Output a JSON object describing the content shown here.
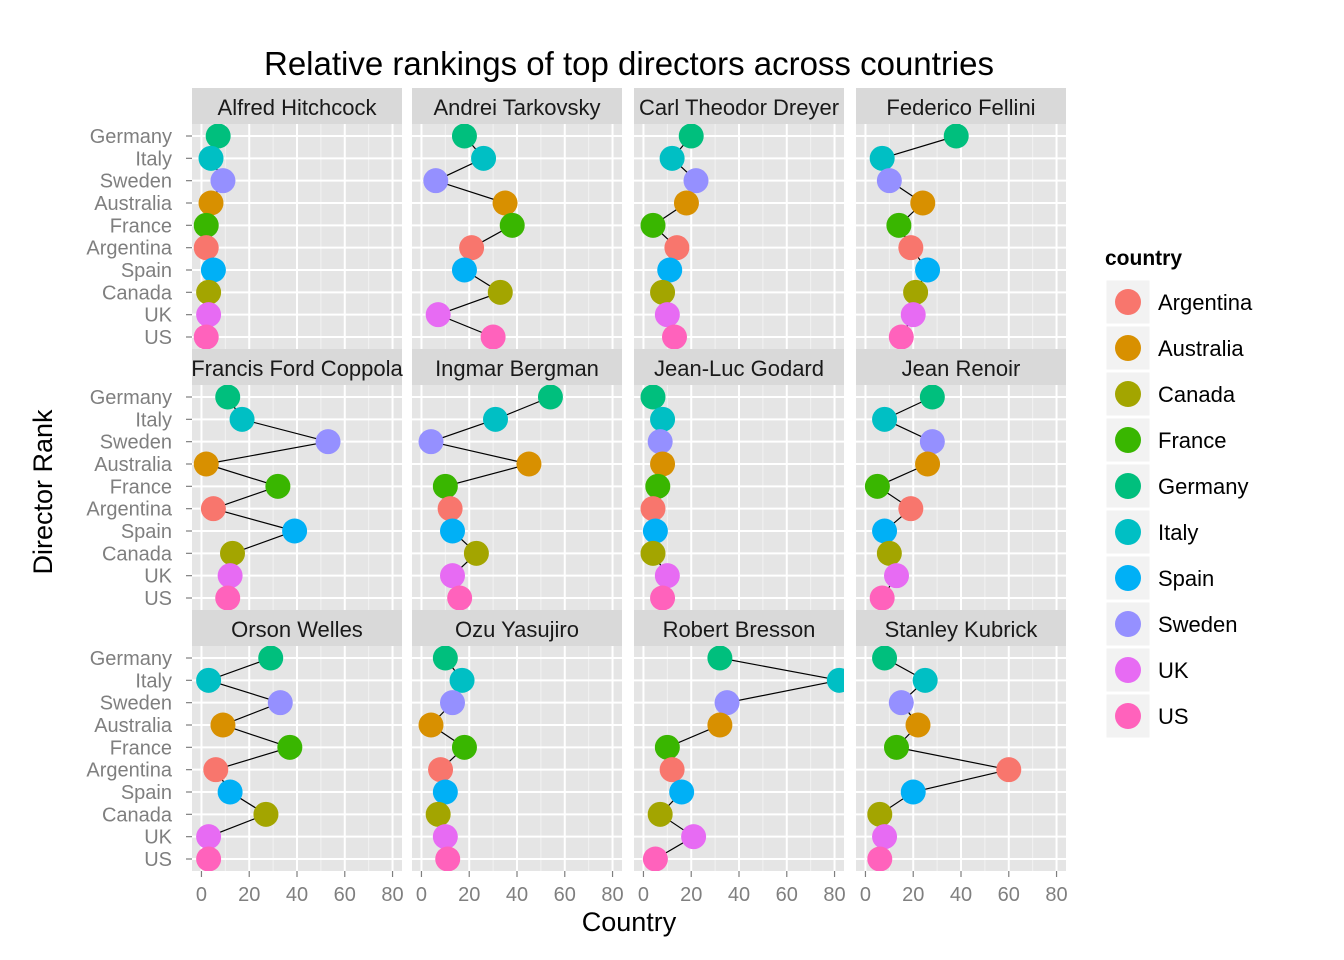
{
  "chart_data": {
    "type": "scatter",
    "title": "Relative rankings of top directors across countries",
    "xlabel": "Country",
    "ylabel": "Director Rank",
    "xlim": [
      0,
      80
    ],
    "x_ticks": [
      0,
      20,
      40,
      60,
      80
    ],
    "y_categories": [
      "Germany",
      "Italy",
      "Sweden",
      "Australia",
      "France",
      "Argentina",
      "Spain",
      "Canada",
      "UK",
      "US"
    ],
    "grid": true,
    "facets": "wrap 4 columns x 3 rows",
    "connect_points": true,
    "legend": {
      "title": "country",
      "placement": "right",
      "entries": [
        "Argentina",
        "Australia",
        "Canada",
        "France",
        "Germany",
        "Italy",
        "Spain",
        "Sweden",
        "UK",
        "US"
      ]
    },
    "colors": {
      "Argentina": "#F8766D",
      "Australia": "#D89000",
      "Canada": "#A3A500",
      "France": "#39B600",
      "Germany": "#00BF7D",
      "Italy": "#00BFC4",
      "Spain": "#00B0F6",
      "Sweden": "#9590FF",
      "UK": "#E76BF3",
      "US": "#FF62BC"
    },
    "panels": [
      {
        "director": "Alfred Hitchcock",
        "values": {
          "Germany": 7,
          "Italy": 4,
          "Sweden": 9,
          "Australia": 4,
          "France": 2,
          "Argentina": 2,
          "Spain": 5,
          "Canada": 3,
          "UK": 3,
          "US": 2
        }
      },
      {
        "director": "Andrei Tarkovsky",
        "values": {
          "Germany": 18,
          "Italy": 26,
          "Sweden": 6,
          "Australia": 35,
          "France": 38,
          "Argentina": 21,
          "Spain": 18,
          "Canada": 33,
          "UK": 7,
          "US": 30
        }
      },
      {
        "director": "Carl Theodor Dreyer",
        "values": {
          "Germany": 20,
          "Italy": 12,
          "Sweden": 22,
          "Australia": 18,
          "France": 4,
          "Argentina": 14,
          "Spain": 11,
          "Canada": 8,
          "UK": 10,
          "US": 13
        }
      },
      {
        "director": "Federico Fellini",
        "values": {
          "Germany": 38,
          "Italy": 7,
          "Sweden": 10,
          "Australia": 24,
          "France": 14,
          "Argentina": 19,
          "Spain": 26,
          "Canada": 21,
          "UK": 20,
          "US": 15
        }
      },
      {
        "director": "Francis Ford Coppola",
        "values": {
          "Germany": 11,
          "Italy": 17,
          "Sweden": 53,
          "Australia": 2,
          "France": 32,
          "Argentina": 5,
          "Spain": 39,
          "Canada": 13,
          "UK": 12,
          "US": 11
        }
      },
      {
        "director": "Ingmar Bergman",
        "values": {
          "Germany": 54,
          "Italy": 31,
          "Sweden": 4,
          "Australia": 45,
          "France": 10,
          "Argentina": 12,
          "Spain": 13,
          "Canada": 23,
          "UK": 13,
          "US": 16
        }
      },
      {
        "director": "Jean-Luc Godard",
        "values": {
          "Germany": 4,
          "Italy": 8,
          "Sweden": 7,
          "Australia": 8,
          "France": 6,
          "Argentina": 4,
          "Spain": 5,
          "Canada": 4,
          "UK": 10,
          "US": 8
        }
      },
      {
        "director": "Jean Renoir",
        "values": {
          "Germany": 28,
          "Italy": 8,
          "Sweden": 28,
          "Australia": 26,
          "France": 5,
          "Argentina": 19,
          "Spain": 8,
          "Canada": 10,
          "UK": 13,
          "US": 7
        }
      },
      {
        "director": "Orson Welles",
        "values": {
          "Germany": 29,
          "Italy": 3,
          "Sweden": 33,
          "Australia": 9,
          "France": 37,
          "Argentina": 6,
          "Spain": 12,
          "Canada": 27,
          "UK": 3,
          "US": 3
        }
      },
      {
        "director": "Ozu Yasujiro",
        "values": {
          "Germany": 10,
          "Italy": 17,
          "Sweden": 13,
          "Australia": 4,
          "France": 18,
          "Argentina": 8,
          "Spain": 10,
          "Canada": 7,
          "UK": 10,
          "US": 11
        }
      },
      {
        "director": "Robert Bresson",
        "values": {
          "Germany": 32,
          "Italy": 82,
          "Sweden": 35,
          "Australia": 32,
          "France": 10,
          "Argentina": 12,
          "Spain": 16,
          "Canada": 7,
          "UK": 21,
          "US": 5
        }
      },
      {
        "director": "Stanley Kubrick",
        "values": {
          "Germany": 8,
          "Italy": 25,
          "Sweden": 15,
          "Australia": 22,
          "France": 13,
          "Argentina": 60,
          "Spain": 20,
          "Canada": 6,
          "UK": 8,
          "US": 6
        }
      }
    ]
  }
}
